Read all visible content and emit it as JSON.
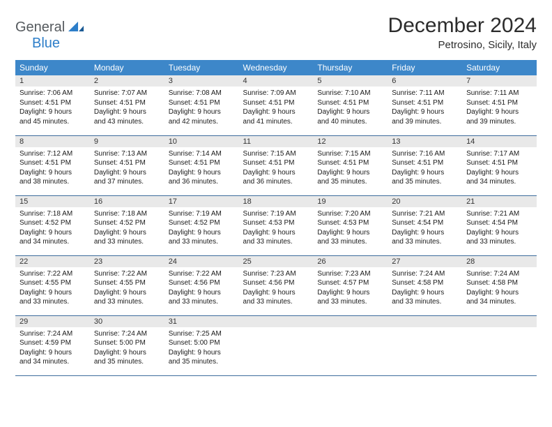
{
  "logo": {
    "word1": "General",
    "word2": "Blue"
  },
  "title": "December 2024",
  "location": "Petrosino, Sicily, Italy",
  "colors": {
    "header_bg": "#3d87c9",
    "header_fg": "#ffffff",
    "daynum_bg": "#e9e9e9",
    "row_border": "#3d6c9c",
    "title_color": "#2c2c2c",
    "logo_gray": "#555a5e",
    "logo_blue": "#2d7ec9"
  },
  "weekdays": [
    "Sunday",
    "Monday",
    "Tuesday",
    "Wednesday",
    "Thursday",
    "Friday",
    "Saturday"
  ],
  "weeks": [
    [
      {
        "n": "1",
        "sr": "Sunrise: 7:06 AM",
        "ss": "Sunset: 4:51 PM",
        "d1": "Daylight: 9 hours",
        "d2": "and 45 minutes."
      },
      {
        "n": "2",
        "sr": "Sunrise: 7:07 AM",
        "ss": "Sunset: 4:51 PM",
        "d1": "Daylight: 9 hours",
        "d2": "and 43 minutes."
      },
      {
        "n": "3",
        "sr": "Sunrise: 7:08 AM",
        "ss": "Sunset: 4:51 PM",
        "d1": "Daylight: 9 hours",
        "d2": "and 42 minutes."
      },
      {
        "n": "4",
        "sr": "Sunrise: 7:09 AM",
        "ss": "Sunset: 4:51 PM",
        "d1": "Daylight: 9 hours",
        "d2": "and 41 minutes."
      },
      {
        "n": "5",
        "sr": "Sunrise: 7:10 AM",
        "ss": "Sunset: 4:51 PM",
        "d1": "Daylight: 9 hours",
        "d2": "and 40 minutes."
      },
      {
        "n": "6",
        "sr": "Sunrise: 7:11 AM",
        "ss": "Sunset: 4:51 PM",
        "d1": "Daylight: 9 hours",
        "d2": "and 39 minutes."
      },
      {
        "n": "7",
        "sr": "Sunrise: 7:11 AM",
        "ss": "Sunset: 4:51 PM",
        "d1": "Daylight: 9 hours",
        "d2": "and 39 minutes."
      }
    ],
    [
      {
        "n": "8",
        "sr": "Sunrise: 7:12 AM",
        "ss": "Sunset: 4:51 PM",
        "d1": "Daylight: 9 hours",
        "d2": "and 38 minutes."
      },
      {
        "n": "9",
        "sr": "Sunrise: 7:13 AM",
        "ss": "Sunset: 4:51 PM",
        "d1": "Daylight: 9 hours",
        "d2": "and 37 minutes."
      },
      {
        "n": "10",
        "sr": "Sunrise: 7:14 AM",
        "ss": "Sunset: 4:51 PM",
        "d1": "Daylight: 9 hours",
        "d2": "and 36 minutes."
      },
      {
        "n": "11",
        "sr": "Sunrise: 7:15 AM",
        "ss": "Sunset: 4:51 PM",
        "d1": "Daylight: 9 hours",
        "d2": "and 36 minutes."
      },
      {
        "n": "12",
        "sr": "Sunrise: 7:15 AM",
        "ss": "Sunset: 4:51 PM",
        "d1": "Daylight: 9 hours",
        "d2": "and 35 minutes."
      },
      {
        "n": "13",
        "sr": "Sunrise: 7:16 AM",
        "ss": "Sunset: 4:51 PM",
        "d1": "Daylight: 9 hours",
        "d2": "and 35 minutes."
      },
      {
        "n": "14",
        "sr": "Sunrise: 7:17 AM",
        "ss": "Sunset: 4:51 PM",
        "d1": "Daylight: 9 hours",
        "d2": "and 34 minutes."
      }
    ],
    [
      {
        "n": "15",
        "sr": "Sunrise: 7:18 AM",
        "ss": "Sunset: 4:52 PM",
        "d1": "Daylight: 9 hours",
        "d2": "and 34 minutes."
      },
      {
        "n": "16",
        "sr": "Sunrise: 7:18 AM",
        "ss": "Sunset: 4:52 PM",
        "d1": "Daylight: 9 hours",
        "d2": "and 33 minutes."
      },
      {
        "n": "17",
        "sr": "Sunrise: 7:19 AM",
        "ss": "Sunset: 4:52 PM",
        "d1": "Daylight: 9 hours",
        "d2": "and 33 minutes."
      },
      {
        "n": "18",
        "sr": "Sunrise: 7:19 AM",
        "ss": "Sunset: 4:53 PM",
        "d1": "Daylight: 9 hours",
        "d2": "and 33 minutes."
      },
      {
        "n": "19",
        "sr": "Sunrise: 7:20 AM",
        "ss": "Sunset: 4:53 PM",
        "d1": "Daylight: 9 hours",
        "d2": "and 33 minutes."
      },
      {
        "n": "20",
        "sr": "Sunrise: 7:21 AM",
        "ss": "Sunset: 4:54 PM",
        "d1": "Daylight: 9 hours",
        "d2": "and 33 minutes."
      },
      {
        "n": "21",
        "sr": "Sunrise: 7:21 AM",
        "ss": "Sunset: 4:54 PM",
        "d1": "Daylight: 9 hours",
        "d2": "and 33 minutes."
      }
    ],
    [
      {
        "n": "22",
        "sr": "Sunrise: 7:22 AM",
        "ss": "Sunset: 4:55 PM",
        "d1": "Daylight: 9 hours",
        "d2": "and 33 minutes."
      },
      {
        "n": "23",
        "sr": "Sunrise: 7:22 AM",
        "ss": "Sunset: 4:55 PM",
        "d1": "Daylight: 9 hours",
        "d2": "and 33 minutes."
      },
      {
        "n": "24",
        "sr": "Sunrise: 7:22 AM",
        "ss": "Sunset: 4:56 PM",
        "d1": "Daylight: 9 hours",
        "d2": "and 33 minutes."
      },
      {
        "n": "25",
        "sr": "Sunrise: 7:23 AM",
        "ss": "Sunset: 4:56 PM",
        "d1": "Daylight: 9 hours",
        "d2": "and 33 minutes."
      },
      {
        "n": "26",
        "sr": "Sunrise: 7:23 AM",
        "ss": "Sunset: 4:57 PM",
        "d1": "Daylight: 9 hours",
        "d2": "and 33 minutes."
      },
      {
        "n": "27",
        "sr": "Sunrise: 7:24 AM",
        "ss": "Sunset: 4:58 PM",
        "d1": "Daylight: 9 hours",
        "d2": "and 33 minutes."
      },
      {
        "n": "28",
        "sr": "Sunrise: 7:24 AM",
        "ss": "Sunset: 4:58 PM",
        "d1": "Daylight: 9 hours",
        "d2": "and 34 minutes."
      }
    ],
    [
      {
        "n": "29",
        "sr": "Sunrise: 7:24 AM",
        "ss": "Sunset: 4:59 PM",
        "d1": "Daylight: 9 hours",
        "d2": "and 34 minutes."
      },
      {
        "n": "30",
        "sr": "Sunrise: 7:24 AM",
        "ss": "Sunset: 5:00 PM",
        "d1": "Daylight: 9 hours",
        "d2": "and 35 minutes."
      },
      {
        "n": "31",
        "sr": "Sunrise: 7:25 AM",
        "ss": "Sunset: 5:00 PM",
        "d1": "Daylight: 9 hours",
        "d2": "and 35 minutes."
      },
      {
        "empty": true
      },
      {
        "empty": true
      },
      {
        "empty": true
      },
      {
        "empty": true
      }
    ]
  ]
}
